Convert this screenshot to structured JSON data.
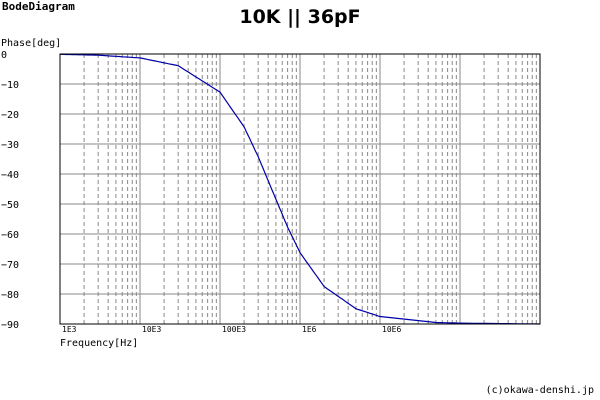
{
  "app_title": "BodeDiagram",
  "copyright": "(c)okawa-denshi.jp",
  "chart_data": {
    "type": "line",
    "title": "10K || 36pF",
    "ylabel": "Phase[deg]",
    "xlabel": "Frequency[Hz]",
    "xscale": "log",
    "xlim": [
      1000,
      1000000000
    ],
    "ylim": [
      -90,
      0
    ],
    "grid": true,
    "x_tick_labels": [
      "1E3",
      "10E3",
      "100E3",
      "1E6",
      "10E6"
    ],
    "y_tick_labels": [
      "0",
      "−10",
      "−20",
      "−30",
      "−40",
      "−50",
      "−60",
      "−70",
      "−80",
      "−90"
    ],
    "series": [
      {
        "color": "#0000aa",
        "x": [
          1000,
          3000,
          10000,
          30000,
          100000,
          200000,
          300000,
          442000,
          700000,
          1000000,
          2000000,
          5000000,
          10000000,
          50000000,
          100000000,
          1000000000
        ],
        "y": [
          -0.1,
          -0.4,
          -1.3,
          -3.9,
          -12.7,
          -24.3,
          -34.2,
          -45.0,
          -57.7,
          -66.2,
          -77.5,
          -84.9,
          -87.5,
          -89.5,
          -89.7,
          -90.0
        ]
      }
    ]
  }
}
